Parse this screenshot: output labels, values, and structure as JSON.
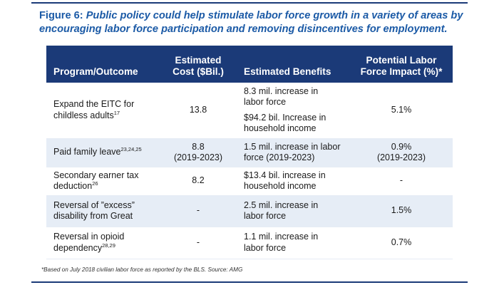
{
  "caption": {
    "lead": "Figure 6:",
    "text": "Public policy could help stimulate labor force growth in a variety of areas by encouraging labor force participation and removing disincentives for employment."
  },
  "table": {
    "headers": {
      "program": "Program/Outcome",
      "cost_line1": "Estimated",
      "cost_line2": "Cost ($Bil.)",
      "benefits": "Estimated Benefits",
      "impact_line1": "Potential Labor",
      "impact_line2": "Force Impact (%)*"
    },
    "rows": [
      {
        "program_line1": "Expand the EITC for",
        "program_line2": "childless adults",
        "program_sup": "17",
        "cost": "13.8",
        "cost_note": "",
        "benefit_a_line1": "8.3 mil. increase in",
        "benefit_a_line2": "labor force",
        "benefit_b_line1": "$94.2 bil. Increase in",
        "benefit_b_line2": "household income",
        "impact": "5.1%",
        "impact_note": ""
      },
      {
        "program_line1": "Paid family leave",
        "program_line2": "",
        "program_sup": "23,24,25",
        "cost": "8.8",
        "cost_note": "(2019-2023)",
        "benefit_a_line1": "1.5 mil. increase in labor",
        "benefit_a_line2": "force (2019-2023)",
        "impact": "0.9%",
        "impact_note": "(2019-2023)"
      },
      {
        "program_line1": "Secondary earner tax",
        "program_line2": "deduction",
        "program_sup": "26",
        "cost": "8.2",
        "benefit_a_line1": "$13.4 bil. increase in",
        "benefit_a_line2": "household income",
        "impact": "-"
      },
      {
        "program_line1": "Reversal of ”excess”",
        "program_line2": "disability from Great",
        "program_sup": "",
        "cost": "-",
        "benefit_a_line1": "2.5 mil. increase in",
        "benefit_a_line2": "labor force",
        "impact": "1.5%"
      },
      {
        "program_line1": "Reversal in opioid",
        "program_line2": "dependency",
        "program_sup": "28,29",
        "cost": "-",
        "benefit_a_line1": "1.1 mil. increase in",
        "benefit_a_line2": "labor force",
        "impact": "0.7%"
      }
    ]
  },
  "footnote": "*Based on July 2018 civilian labor force as reported by the BLS. Source: AMG",
  "colors": {
    "header_bg": "#1b3a78",
    "caption_text": "#1b5aa6",
    "stripe": "#e6edf6"
  }
}
